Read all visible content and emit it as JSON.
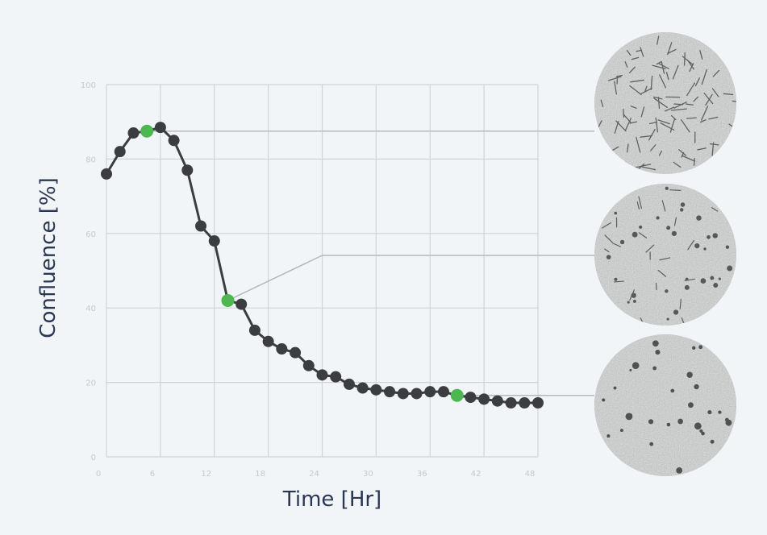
{
  "chart_data": {
    "type": "line",
    "title": "",
    "xlabel": "Time [Hr]",
    "ylabel": "Confluence [%]",
    "xlim": [
      0,
      48
    ],
    "ylim": [
      0,
      100
    ],
    "x_ticks": [
      0,
      6,
      12,
      18,
      24,
      30,
      36,
      42,
      48
    ],
    "y_ticks": [
      0,
      20,
      40,
      60,
      80,
      100
    ],
    "grid": true,
    "series": [
      {
        "x": [
          0,
          1.5,
          3,
          4.5,
          6,
          7.5,
          9,
          10.5,
          12,
          13.5,
          15,
          16.5,
          18,
          19.5,
          21,
          22.5,
          24,
          25.5,
          27,
          28.5,
          30,
          31.5,
          33,
          34.5,
          36,
          37.5,
          39,
          40.5,
          42,
          43.5,
          45,
          46.5,
          48
        ],
        "y": [
          76,
          82,
          87,
          87.5,
          88.5,
          85,
          77,
          62,
          58,
          42,
          41,
          34,
          31,
          29,
          28,
          24.5,
          22,
          21.5,
          19.5,
          18.5,
          18,
          17.5,
          17,
          17,
          17.5,
          17.5,
          16.5,
          16,
          15.5,
          15,
          14.5,
          14.5,
          14.5
        ],
        "color": "#3b3d40"
      }
    ],
    "highlighted_points": [
      {
        "x": 4.5,
        "y": 87.5,
        "color": "#4cb84f"
      },
      {
        "x": 13.5,
        "y": 42,
        "color": "#4cb84f"
      },
      {
        "x": 39,
        "y": 16.5,
        "color": "#4cb84f"
      }
    ],
    "inset_images": [
      "high-confluence-cell-micrograph",
      "medium-confluence-cell-micrograph",
      "low-confluence-cell-micrograph"
    ]
  },
  "colors": {
    "background": "#f2f5f8",
    "grid": "#cfd4da",
    "line": "#3b3d40",
    "highlight": "#4cb84f",
    "connector": "#b4b9bf",
    "axis_title": "#2b3752",
    "tick": "#c4c9cf",
    "micrograph": "#a4a5a5"
  }
}
